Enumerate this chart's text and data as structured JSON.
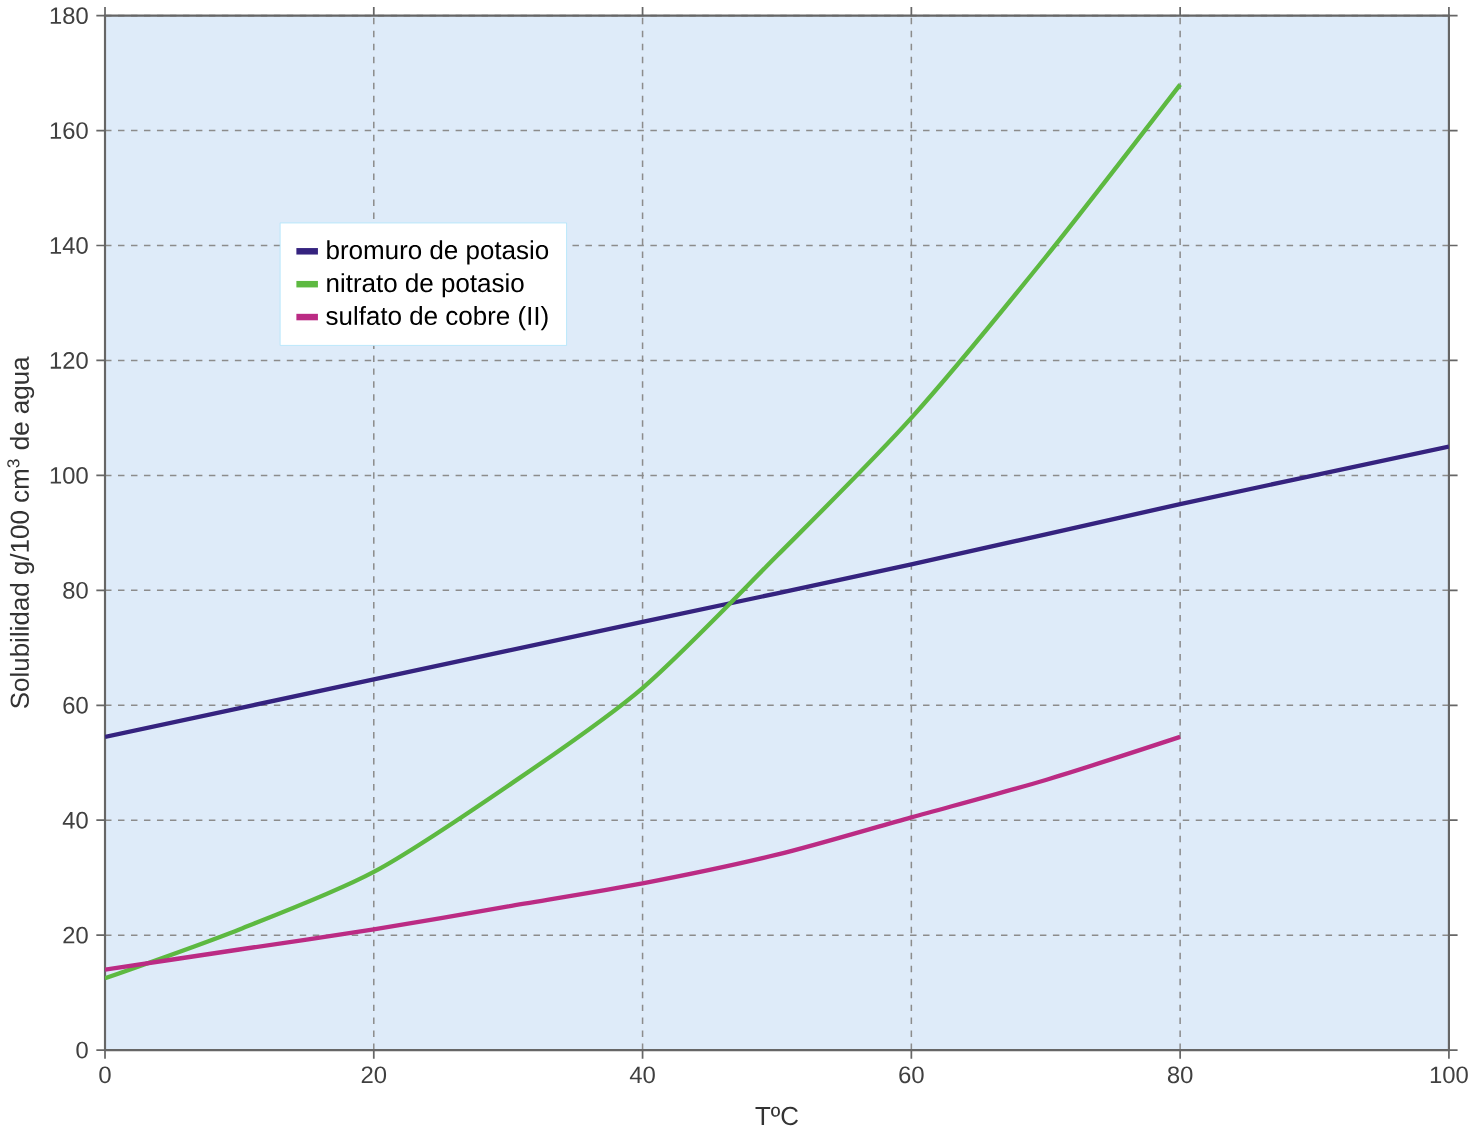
{
  "chart_data": {
    "type": "line",
    "xlabel": "TºC",
    "ylabel": "Solubilidad g/100 cm$^{3}$ de agua",
    "xlim": [
      0,
      100
    ],
    "ylim": [
      0,
      180
    ],
    "xticks": [
      0,
      20,
      40,
      60,
      80,
      100
    ],
    "yticks": [
      0,
      20,
      40,
      60,
      80,
      100,
      120,
      140,
      160,
      180
    ],
    "grid": true,
    "legend": "top left",
    "marker": "none",
    "line_style": "solid",
    "series": [
      {
        "name": "bromuro de potasio",
        "color": "#35237f",
        "x": [
          0,
          20,
          40,
          60,
          80,
          100
        ],
        "values": [
          54.5,
          64.5,
          74.5,
          84.5,
          95,
          105
        ]
      },
      {
        "name": "nitrato de potasio",
        "color": "#5db941",
        "x": [
          0,
          10,
          20,
          30,
          40,
          50,
          60,
          70,
          80
        ],
        "values": [
          12.5,
          21,
          31,
          46,
          63,
          86,
          110,
          138,
          168
        ]
      },
      {
        "name": "sulfato de cobre (II)",
        "color": "#bb2b84",
        "x": [
          0,
          10,
          20,
          30,
          40,
          50,
          60,
          70,
          80
        ],
        "values": [
          14,
          17.5,
          21,
          25,
          29,
          34,
          40.5,
          47,
          54.5
        ]
      }
    ]
  }
}
